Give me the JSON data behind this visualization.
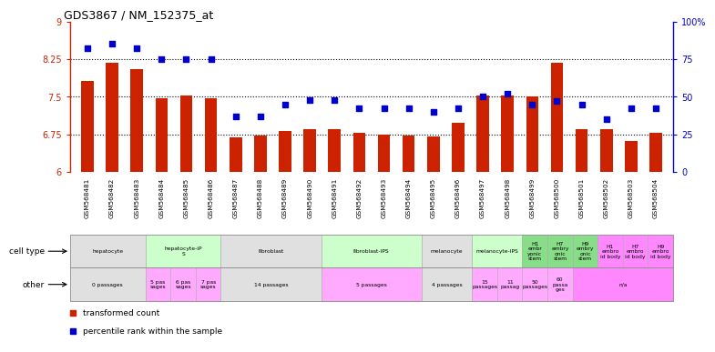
{
  "title": "GDS3867 / NM_152375_at",
  "samples": [
    "GSM568481",
    "GSM568482",
    "GSM568483",
    "GSM568484",
    "GSM568485",
    "GSM568486",
    "GSM568487",
    "GSM568488",
    "GSM568489",
    "GSM568490",
    "GSM568491",
    "GSM568492",
    "GSM568493",
    "GSM568494",
    "GSM568495",
    "GSM568496",
    "GSM568497",
    "GSM568498",
    "GSM568499",
    "GSM568500",
    "GSM568501",
    "GSM568502",
    "GSM568503",
    "GSM568504"
  ],
  "bar_values": [
    7.82,
    8.17,
    8.05,
    7.47,
    7.52,
    7.47,
    6.68,
    6.72,
    6.82,
    6.85,
    6.85,
    6.78,
    6.75,
    6.73,
    6.71,
    6.97,
    7.52,
    7.52,
    7.5,
    8.17,
    6.85,
    6.85,
    6.62,
    6.78
  ],
  "percentile_values": [
    82,
    85,
    82,
    75,
    75,
    75,
    37,
    37,
    45,
    48,
    48,
    42,
    42,
    42,
    40,
    42,
    50,
    52,
    45,
    47,
    45,
    35,
    42,
    42
  ],
  "ylim_left": [
    6,
    9
  ],
  "ylim_right": [
    0,
    100
  ],
  "yticks_left": [
    6,
    6.75,
    7.5,
    8.25,
    9
  ],
  "yticks_left_labels": [
    "6",
    "6.75",
    "7.5",
    "8.25",
    "9"
  ],
  "yticks_right": [
    0,
    25,
    50,
    75,
    100
  ],
  "yticks_right_labels": [
    "0",
    "25",
    "50",
    "75",
    "100%"
  ],
  "bar_color": "#cc2200",
  "dot_color": "#0000cc",
  "cell_type_groups": [
    {
      "name": "hepatocyte",
      "start": 0,
      "end": 2,
      "color": "#e0e0e0"
    },
    {
      "name": "hepatocyte-iP\nS",
      "start": 3,
      "end": 5,
      "color": "#ccffcc"
    },
    {
      "name": "fibroblast",
      "start": 6,
      "end": 9,
      "color": "#e0e0e0"
    },
    {
      "name": "fibroblast-IPS",
      "start": 10,
      "end": 13,
      "color": "#ccffcc"
    },
    {
      "name": "melanocyte",
      "start": 14,
      "end": 15,
      "color": "#e0e0e0"
    },
    {
      "name": "melanocyte-IPS",
      "start": 16,
      "end": 17,
      "color": "#ccffcc"
    },
    {
      "name": "H1\nembr\nyonic\nstem",
      "start": 18,
      "end": 18,
      "color": "#88dd88"
    },
    {
      "name": "H7\nembry\nonic\nstem",
      "start": 19,
      "end": 19,
      "color": "#88dd88"
    },
    {
      "name": "H9\nembry\nonic\nstem",
      "start": 20,
      "end": 20,
      "color": "#88dd88"
    },
    {
      "name": "H1\nembro\nid body",
      "start": 21,
      "end": 21,
      "color": "#ff88ff"
    },
    {
      "name": "H7\nembro\nid body",
      "start": 22,
      "end": 22,
      "color": "#ff88ff"
    },
    {
      "name": "H9\nembro\nid body",
      "start": 23,
      "end": 23,
      "color": "#ff88ff"
    }
  ],
  "other_groups": [
    {
      "name": "0 passages",
      "start": 0,
      "end": 2,
      "color": "#e0e0e0"
    },
    {
      "name": "5 pas\nsages",
      "start": 3,
      "end": 3,
      "color": "#ffaaff"
    },
    {
      "name": "6 pas\nsages",
      "start": 4,
      "end": 4,
      "color": "#ffaaff"
    },
    {
      "name": "7 pas\nsages",
      "start": 5,
      "end": 5,
      "color": "#ffaaff"
    },
    {
      "name": "14 passages",
      "start": 6,
      "end": 9,
      "color": "#e0e0e0"
    },
    {
      "name": "5 passages",
      "start": 10,
      "end": 13,
      "color": "#ffaaff"
    },
    {
      "name": "4 passages",
      "start": 14,
      "end": 15,
      "color": "#e0e0e0"
    },
    {
      "name": "15\npassages",
      "start": 16,
      "end": 16,
      "color": "#ffaaff"
    },
    {
      "name": "11\npassag",
      "start": 17,
      "end": 17,
      "color": "#ffaaff"
    },
    {
      "name": "50\npassages",
      "start": 18,
      "end": 18,
      "color": "#ffaaff"
    },
    {
      "name": "60\npassa\nges",
      "start": 19,
      "end": 19,
      "color": "#ffaaff"
    },
    {
      "name": "n/a",
      "start": 20,
      "end": 23,
      "color": "#ff88ff"
    }
  ],
  "legend_items": [
    {
      "label": "transformed count",
      "color": "#cc2200"
    },
    {
      "label": "percentile rank within the sample",
      "color": "#0000cc"
    }
  ]
}
